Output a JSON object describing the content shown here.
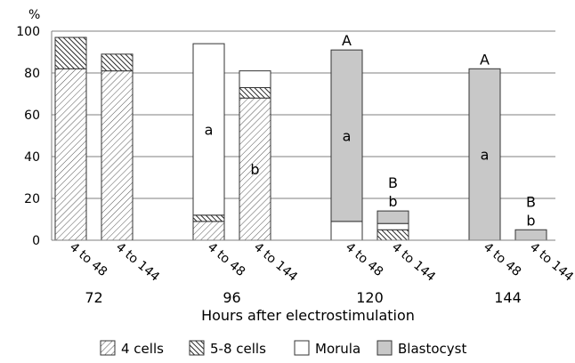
{
  "chart_data": {
    "type": "bar",
    "stacked": true,
    "ylabel": "%",
    "xlabel": "Hours after electrostimulation",
    "ylim": [
      0,
      100
    ],
    "yticks": [
      0,
      20,
      40,
      60,
      80,
      100
    ],
    "grid": true,
    "legend_position": "bottom",
    "groups": [
      "72",
      "96",
      "120",
      "144"
    ],
    "categories": [
      "4 to 48",
      "4 to 144"
    ],
    "series": [
      {
        "name": "4 cells",
        "values": [
          [
            82,
            81
          ],
          [
            9,
            68
          ],
          [
            0,
            0
          ],
          [
            0,
            0
          ]
        ]
      },
      {
        "name": "5-8 cells",
        "values": [
          [
            15,
            8
          ],
          [
            3,
            5
          ],
          [
            0,
            5
          ],
          [
            0,
            0
          ]
        ]
      },
      {
        "name": "Morula",
        "values": [
          [
            0,
            0
          ],
          [
            82,
            8
          ],
          [
            9,
            3
          ],
          [
            0,
            0
          ]
        ]
      },
      {
        "name": "Blastocyst",
        "values": [
          [
            0,
            0
          ],
          [
            0,
            0
          ],
          [
            82,
            6
          ],
          [
            82,
            5
          ]
        ]
      }
    ],
    "annotations": [
      {
        "group": 1,
        "category": 0,
        "text": "a",
        "position": "inside"
      },
      {
        "group": 1,
        "category": 1,
        "text": "b",
        "position": "inside"
      },
      {
        "group": 2,
        "category": 0,
        "text": "a",
        "position": "inside"
      },
      {
        "group": 2,
        "category": 0,
        "text": "A",
        "position": "above"
      },
      {
        "group": 2,
        "category": 1,
        "text": "b",
        "position": "above"
      },
      {
        "group": 2,
        "category": 1,
        "text": "B",
        "position": "above"
      },
      {
        "group": 3,
        "category": 0,
        "text": "a",
        "position": "inside"
      },
      {
        "group": 3,
        "category": 0,
        "text": "A",
        "position": "above"
      },
      {
        "group": 3,
        "category": 1,
        "text": "b",
        "position": "above"
      },
      {
        "group": 3,
        "category": 1,
        "text": "B",
        "position": "above"
      }
    ]
  }
}
